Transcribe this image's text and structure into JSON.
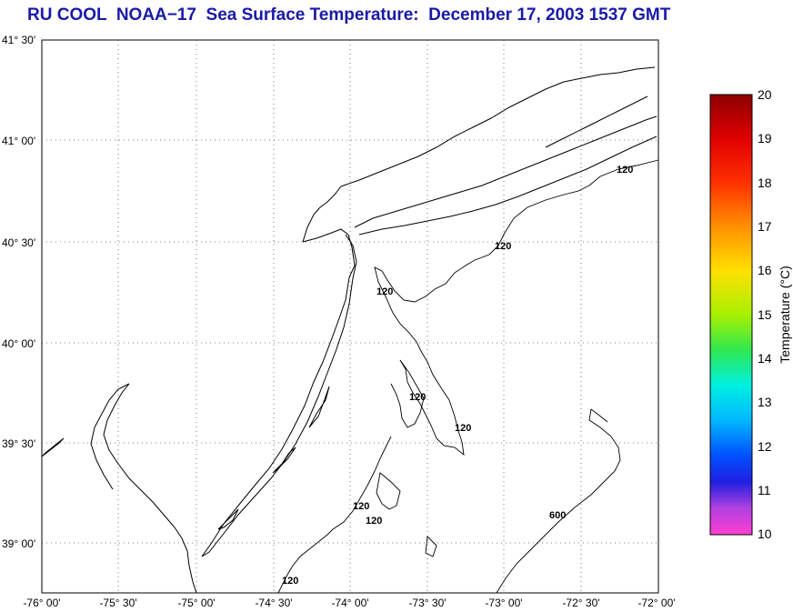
{
  "title": "RU COOL  NOAA−17  Sea Surface Temperature:  December 17, 2003 1537 GMT",
  "map": {
    "lon_labels": [
      "-76° 00'",
      "-75° 30'",
      "-75° 00'",
      "-74° 30'",
      "-74° 00'",
      "-73° 30'",
      "-73° 00'",
      "-72° 30'",
      "-72° 00'"
    ],
    "lat_labels": [
      "41° 30'",
      "41° 00'",
      "40° 30'",
      "40° 00'",
      "39° 30'",
      "39° 00'"
    ],
    "contour_labels": [
      "120",
      "120",
      "120",
      "120",
      "120",
      "120",
      "120",
      "600",
      "120"
    ]
  },
  "colorbar": {
    "title": "Temperature (°C)",
    "ticks": [
      "20",
      "19",
      "18",
      "17",
      "16",
      "15",
      "14",
      "13",
      "12",
      "11",
      "10"
    ],
    "min": 10,
    "max": 20
  }
}
